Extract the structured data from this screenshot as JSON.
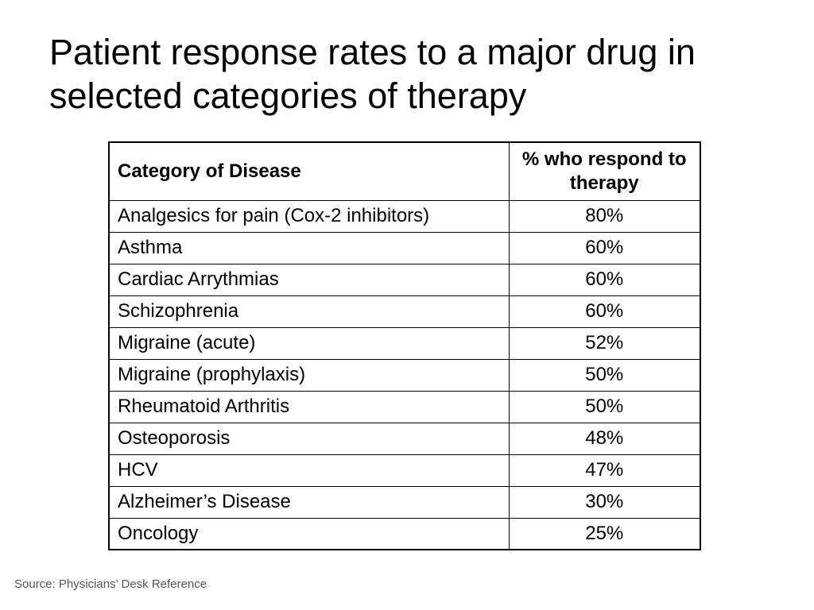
{
  "title": "Patient response rates to a major drug in selected categories of therapy",
  "table": {
    "headers": [
      "Category of Disease",
      "% who respond to therapy"
    ],
    "rows": [
      [
        "Analgesics for pain (Cox-2 inhibitors)",
        "80%"
      ],
      [
        "Asthma",
        "60%"
      ],
      [
        "Cardiac Arrythmias",
        "60%"
      ],
      [
        "Schizophrenia",
        "60%"
      ],
      [
        "Migraine (acute)",
        "52%"
      ],
      [
        "Migraine (prophylaxis)",
        "50%"
      ],
      [
        "Rheumatoid Arthritis",
        "50%"
      ],
      [
        "Osteoporosis",
        "48%"
      ],
      [
        "HCV",
        "47%"
      ],
      [
        "Alzheimer’s Disease",
        "30%"
      ],
      [
        "Oncology",
        "25%"
      ]
    ]
  },
  "source": "Source: Physicians’ Desk Reference"
}
